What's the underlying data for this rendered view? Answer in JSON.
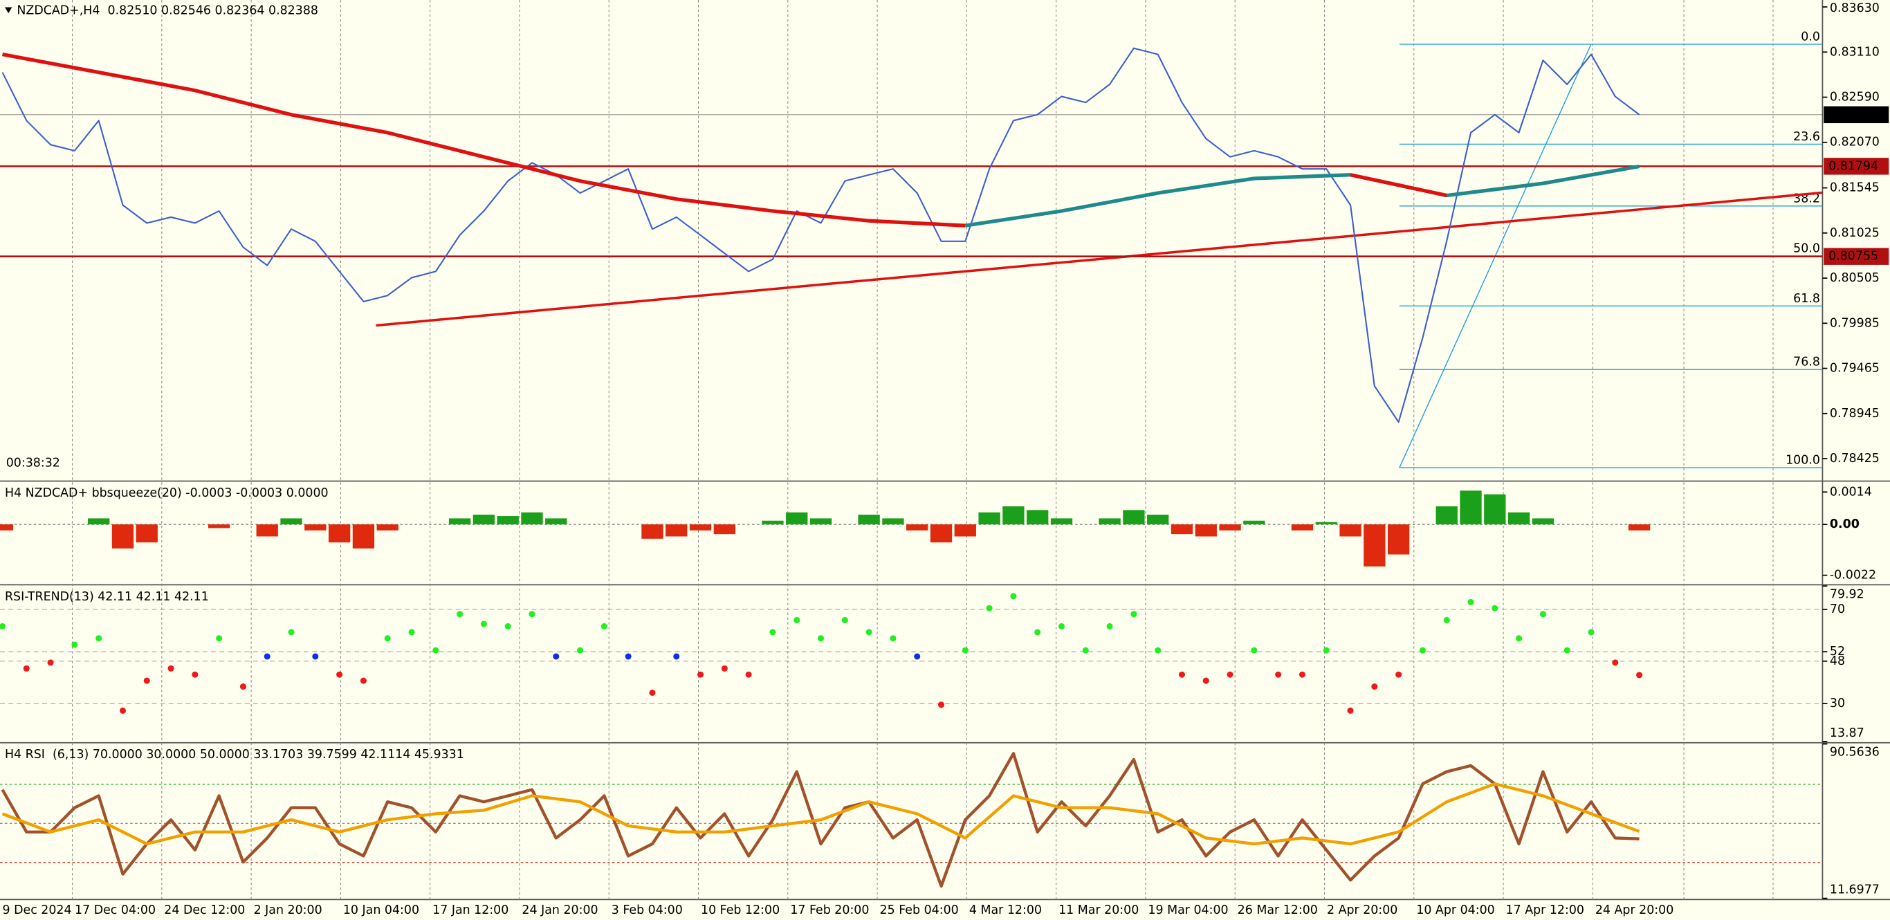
{
  "chart_data": [
    {
      "type": "line",
      "title": "NZDCAD+,H4  0.82510 0.82546 0.82364 0.82388",
      "timer": "00:38:32",
      "ylim": [
        0.7818,
        0.8371
      ],
      "yticks": [
        {
          "value": 0.8363,
          "label": "0.83630"
        },
        {
          "value": 0.8311,
          "label": "0.83110"
        },
        {
          "value": 0.8259,
          "label": "0.82590"
        },
        {
          "value": 0.8207,
          "label": "0.82070"
        },
        0.81545,
        0.81025,
        0.80505,
        0.79985,
        0.79465,
        0.78945,
        0.78425
      ],
      "x_axis_labels": [
        "9 Dec 2024",
        "17 Dec 04:00",
        "24 Dec 12:00",
        "2 Jan 20:00",
        "10 Jan 04:00",
        "17 Jan 12:00",
        "24 Jan 20:00",
        "3 Feb 04:00",
        "10 Feb 12:00",
        "17 Feb 20:00",
        "25 Feb 04:00",
        "4 Mar 12:00",
        "11 Mar 20:00",
        "19 Mar 04:00",
        "26 Mar 12:00",
        "2 Apr 20:00",
        "10 Apr 04:00",
        "17 Apr 12:00",
        "24 Apr 20:00"
      ],
      "series": [
        {
          "color": "#3a5fcd",
          "width": 1.2,
          "values": [
            0.82876,
            0.8232,
            0.82042,
            0.81973,
            0.8232,
            0.81347,
            0.81139,
            0.81208,
            0.81139,
            0.81278,
            0.80861,
            0.80652,
            0.8107,
            0.8093,
            0.80583,
            0.80235,
            0.80305,
            0.8051,
            0.80583,
            0.81,
            0.81278,
            0.81625,
            0.81834,
            0.81695,
            0.81486,
            0.81625,
            0.81764,
            0.8107,
            0.81208,
            0.81,
            0.80791,
            0.80583,
            0.80722,
            0.81278,
            0.81139,
            0.81625,
            0.81695,
            0.81764,
            0.81486,
            0.8093,
            0.8093,
            0.81764,
            0.8232,
            0.82389,
            0.82598,
            0.82529,
            0.82737,
            0.83154,
            0.83084,
            0.82529,
            0.82112,
            0.81903,
            0.81973,
            0.81903,
            0.81764,
            0.81764,
            0.81347,
            0.79262,
            0.78845,
            0.79818,
            0.8093,
            0.82181,
            0.82389,
            0.82181,
            0.83015,
            0.82737,
            0.83084,
            0.82598,
            0.82388
          ]
        },
        {
          "color": "#1f8a8a",
          "width": 3,
          "values": [
            null,
            null,
            null,
            null,
            null,
            null,
            null,
            null,
            null,
            null,
            0.81111,
            0.81278,
            0.81486,
            0.81653,
            0.81695,
            0.81458,
            0.81597,
            0.81792
          ]
        },
        {
          "color": "#e01010",
          "width": 3,
          "values": [
            0.83084,
            0.82876,
            0.82668,
            0.82389,
            0.82181,
            0.81903,
            0.81625,
            0.81416,
            0.81278,
            0.81166,
            0.81111,
            null,
            null,
            null,
            0.81695,
            0.81458,
            null,
            null
          ]
        }
      ],
      "price_lines": [
        0.82388,
        0.81794,
        0.80755
      ],
      "price_line_colors": [
        "#000000",
        "#b01010",
        "#b01010"
      ],
      "trendline": [
        0.7996,
        0.8149
      ],
      "trendline_color": "#e01010",
      "fib": {
        "high": 0.832,
        "low": 0.7832,
        "color": "#1e9fd8",
        "levels": [
          {
            "value": 0,
            "label": "0.0"
          },
          23.6,
          38.2,
          {
            "value": 50,
            "label": "50.0"
          },
          61.8,
          76.8,
          {
            "value": 100,
            "label": "100.0"
          }
        ]
      }
    },
    {
      "type": "bar",
      "title": "H4 NZDCAD+ bbsqueeze(20) -0.0003 -0.0003 0.0000",
      "ylim": [
        -0.00256,
        0.00182
      ],
      "yticks": [
        0.0014,
        {
          "value": 0,
          "label": "0.00"
        },
        -0.0022
      ],
      "up_color": "#1aa01a",
      "down_color": "#e02a10",
      "values": [
        -0.00026,
        0,
        0,
        0,
        0.00026,
        -0.00104,
        -0.00078,
        0,
        0,
        -0.00016,
        0,
        -0.00052,
        0.00026,
        -0.00026,
        -0.00078,
        -0.00104,
        -0.00026,
        0,
        0,
        0.00026,
        0.00042,
        0.00036,
        0.00052,
        0.00026,
        0,
        0,
        0,
        -0.00062,
        -0.00052,
        -0.00026,
        -0.00042,
        0,
        0.00016,
        0.00052,
        0.00026,
        0,
        0.00042,
        0.00026,
        -0.00026,
        -0.00078,
        -0.00052,
        0.00052,
        0.00078,
        0.00062,
        0.00026,
        0,
        0.00026,
        0.00062,
        0.00042,
        -0.00042,
        -0.00052,
        -0.00026,
        0.00016,
        0,
        -0.00026,
        0.0001,
        -0.00052,
        -0.00182,
        -0.0013,
        0,
        0.00078,
        0.00146,
        0.0013,
        0.00052,
        0.00026,
        0,
        0,
        0,
        -0.00026
      ]
    },
    {
      "type": "scatter",
      "title": "RSI-TREND(13) 42.11 42.11 42.11",
      "ylim": [
        13.87,
        79.92
      ],
      "yticks": [
        79.92,
        70,
        52,
        48,
        30,
        13.87
      ],
      "grid": true,
      "colors": {
        "up": "#22ee22",
        "mid": "#1030e0",
        "down": "#ee1a1a"
      },
      "values": [
        62.8,
        44.9,
        47.4,
        55,
        57.7,
        27,
        39.7,
        44.9,
        42.3,
        57.7,
        37.2,
        50,
        60.3,
        50,
        42.3,
        39.7,
        57.7,
        60.3,
        52.6,
        68,
        63.8,
        62.8,
        68,
        50,
        52.6,
        62.8,
        50,
        34.6,
        50,
        42.3,
        44.9,
        42.3,
        60.3,
        65.4,
        57.7,
        65.4,
        60.3,
        57.7,
        50,
        29.5,
        52.6,
        70.5,
        75.6,
        60.3,
        62.8,
        52.6,
        62.8,
        68,
        52.6,
        42.3,
        39.7,
        42.3,
        52.6,
        42.3,
        42.3,
        52.6,
        27,
        37.2,
        42.3,
        52.6,
        65.4,
        73.1,
        70.5,
        57.7,
        68,
        52.6,
        60.3,
        47.4,
        42.11
      ]
    },
    {
      "type": "line",
      "title": "H4 RSI  (6,13) 70.0000 30.0000 50.0000 33.1703 39.7599 42.1114 45.9331",
      "ylim": [
        11.6977,
        90.5636
      ],
      "yticks": [
        90.5636,
        11.6977
      ],
      "levels": [
        70,
        30,
        50
      ],
      "level_colors": [
        "#20b020",
        "#d02020",
        "#909090"
      ],
      "series": [
        {
          "color": "#a0522d",
          "width": 2.5,
          "values": [
            67.2,
            45.6,
            45.6,
            58.0,
            64.1,
            24.1,
            39.5,
            51.8,
            36.4,
            64.1,
            30.2,
            42.5,
            58.0,
            58.0,
            39.5,
            33.3,
            61.0,
            58.0,
            45.6,
            64.1,
            61.0,
            64.1,
            67.2,
            42.5,
            51.8,
            64.1,
            33.3,
            39.5,
            58.0,
            42.5,
            54.9,
            33.3,
            51.8,
            76.4,
            39.5,
            58.0,
            61.0,
            42.5,
            51.8,
            17.9,
            51.8,
            64.1,
            85.7,
            45.6,
            61.0,
            48.7,
            64.1,
            82.6,
            45.6,
            51.8,
            33.3,
            45.6,
            51.8,
            33.3,
            51.8,
            36.4,
            21.0,
            33.3,
            42.5,
            70.2,
            76.4,
            79.5,
            70.2,
            39.5,
            76.4,
            45.6,
            61.0,
            42.5,
            42.1
          ]
        },
        {
          "color": "#f0a000",
          "width": 2.5,
          "values": [
            54.9,
            45.6,
            51.8,
            39.5,
            45.6,
            45.6,
            51.8,
            45.6,
            51.8,
            54.9,
            56.7,
            64.1,
            61.0,
            48.7,
            45.6,
            45.6,
            48.7,
            51.8,
            61.0,
            54.9,
            42.5,
            64.1,
            58.0,
            58.0,
            54.9,
            42.5,
            39.5,
            42.5,
            39.5,
            45.6,
            61.0,
            70.2,
            64.1,
            54.9,
            45.9
          ]
        }
      ]
    }
  ]
}
